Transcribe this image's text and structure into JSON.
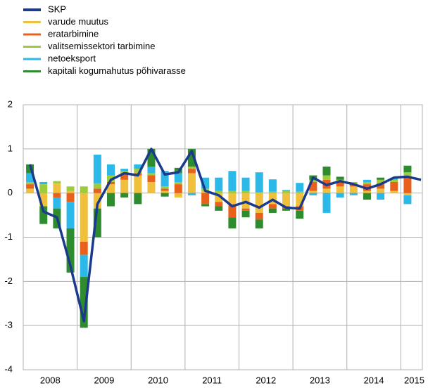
{
  "chart_data": {
    "type": "stacked_bar_line",
    "ylim": [
      -4,
      2
    ],
    "yticks": [
      2,
      1,
      0,
      -1,
      -2,
      -3,
      -4
    ],
    "grid": true,
    "legend": "top-left",
    "year_labels": [
      "2008",
      "2009",
      "2010",
      "2011",
      "2012",
      "2013",
      "2014",
      "2015"
    ],
    "categories": [
      null,
      null,
      null,
      null,
      null,
      null,
      null,
      null,
      null,
      null,
      null,
      null,
      null,
      null,
      null,
      null,
      null,
      null,
      null,
      null,
      null,
      null,
      null,
      null,
      null,
      null,
      null,
      null,
      null,
      null
    ],
    "line": {
      "name": "SKP",
      "color": "#1b3a8c",
      "values": [
        0.65,
        -0.42,
        -0.55,
        -1.65,
        -2.9,
        -0.25,
        0.3,
        0.45,
        0.4,
        1.0,
        0.42,
        0.47,
        0.95,
        0.05,
        -0.05,
        -0.3,
        -0.2,
        -0.33,
        -0.15,
        -0.33,
        -0.35,
        0.35,
        0.18,
        0.27,
        0.2,
        0.1,
        0.2,
        0.35,
        0.37,
        0.3
      ]
    },
    "series": [
      {
        "name": "varude muutus",
        "color": "#f0c03c",
        "values": [
          0.1,
          -0.3,
          0.22,
          0.05,
          -1.1,
          -0.35,
          0.2,
          0.3,
          0.4,
          0.25,
          0.05,
          -0.1,
          0.45,
          0.05,
          -0.2,
          -0.25,
          -0.35,
          -0.45,
          -0.25,
          -0.3,
          -0.3,
          0.05,
          0.1,
          0.15,
          0.15,
          0.05,
          0.1,
          0.05,
          -0.05,
          null
        ]
      },
      {
        "name": "eratarbimine",
        "color": "#e8601c",
        "values": [
          0.1,
          0,
          -0.1,
          -0.2,
          -0.3,
          0.1,
          0.05,
          0.15,
          0.05,
          0.15,
          0.05,
          0.2,
          0.1,
          -0.25,
          -0.1,
          -0.3,
          -0.05,
          -0.15,
          -0.1,
          -0.05,
          -0.1,
          0.2,
          0.2,
          0.1,
          0.05,
          0.15,
          0.12,
          0.2,
          0.35,
          null
        ]
      },
      {
        "name": "valitsemissektori tarbimine",
        "color": "#9ccc3c",
        "values": [
          0.05,
          0.2,
          0.05,
          0.1,
          0.15,
          0.12,
          0.15,
          0.05,
          0.1,
          0.05,
          0.05,
          0.05,
          0.05,
          0.05,
          0.05,
          0.05,
          0.05,
          0.02,
          0.03,
          0.05,
          0.03,
          0.05,
          0.1,
          0.05,
          0.05,
          0.05,
          0.08,
          0.05,
          0.12,
          null
        ]
      },
      {
        "name": "netoeksport",
        "color": "#2cb8e8",
        "values": [
          0.2,
          0.05,
          -0.25,
          -0.6,
          -0.5,
          0.65,
          0.25,
          0.05,
          0.1,
          0.15,
          0.35,
          0.2,
          -0.05,
          0.25,
          0.3,
          0.45,
          0.3,
          0.45,
          0.28,
          0.02,
          0.2,
          -0.05,
          -0.45,
          -0.1,
          -0.05,
          0.05,
          -0.15,
          0.05,
          -0.2,
          null
        ]
      },
      {
        "name": "kapitali kogumahutus põhivarasse",
        "color": "#2e8b2e",
        "values": [
          0.2,
          -0.4,
          -0.45,
          -1.0,
          -1.15,
          -0.65,
          -0.3,
          -0.1,
          -0.25,
          0.4,
          -0.08,
          0.12,
          0.4,
          -0.05,
          -0.1,
          -0.25,
          -0.15,
          -0.2,
          -0.1,
          -0.05,
          -0.18,
          0.1,
          0.2,
          0.07,
          0,
          -0.15,
          0.05,
          0,
          0.15,
          null
        ]
      }
    ]
  }
}
